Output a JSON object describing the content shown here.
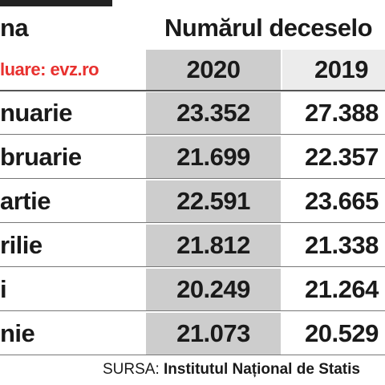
{
  "header": {
    "month_column": "na",
    "deaths_column": "Numărul deceselo",
    "source_note": "luare: evz.ro",
    "years": [
      "2020",
      "2019"
    ]
  },
  "table": {
    "rows": [
      [
        "nuarie",
        "23.352",
        "27.388"
      ],
      [
        "bruarie",
        "21.699",
        "22.357"
      ],
      [
        "artie",
        "22.591",
        "23.665"
      ],
      [
        "rilie",
        "21.812",
        "21.338"
      ],
      [
        "i",
        "20.249",
        "21.264"
      ],
      [
        "nie",
        "21.073",
        "20.529"
      ]
    ]
  },
  "footer": {
    "label": "SURSA:",
    "source": "Institutul Național de Statis"
  }
}
